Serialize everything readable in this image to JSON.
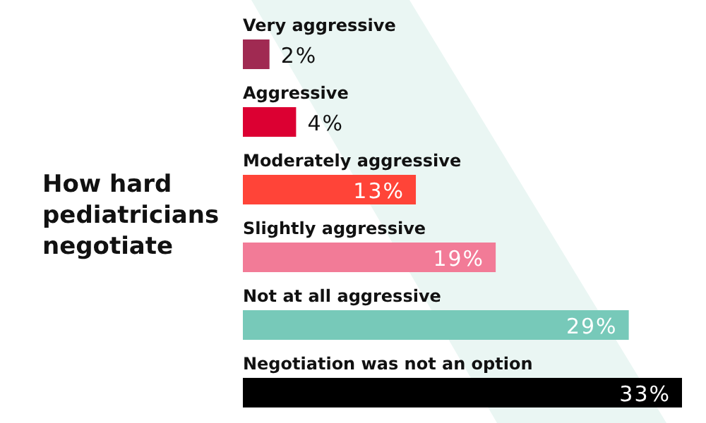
{
  "chart_data": {
    "type": "bar",
    "orientation": "horizontal",
    "title": "How hard pediatricians negotiate",
    "categories": [
      "Very aggressive",
      "Aggressive",
      "Moderately aggressive",
      "Slightly aggressive",
      "Not at all aggressive",
      "Negotiation was not an option"
    ],
    "values": [
      2,
      4,
      13,
      19,
      29,
      33
    ],
    "colors": [
      "#a02a52",
      "#dc0032",
      "#ff4438",
      "#f27b97",
      "#77c9b9",
      "#000000"
    ],
    "value_labels": [
      "2%",
      "4%",
      "13%",
      "19%",
      "29%",
      "33%"
    ]
  }
}
